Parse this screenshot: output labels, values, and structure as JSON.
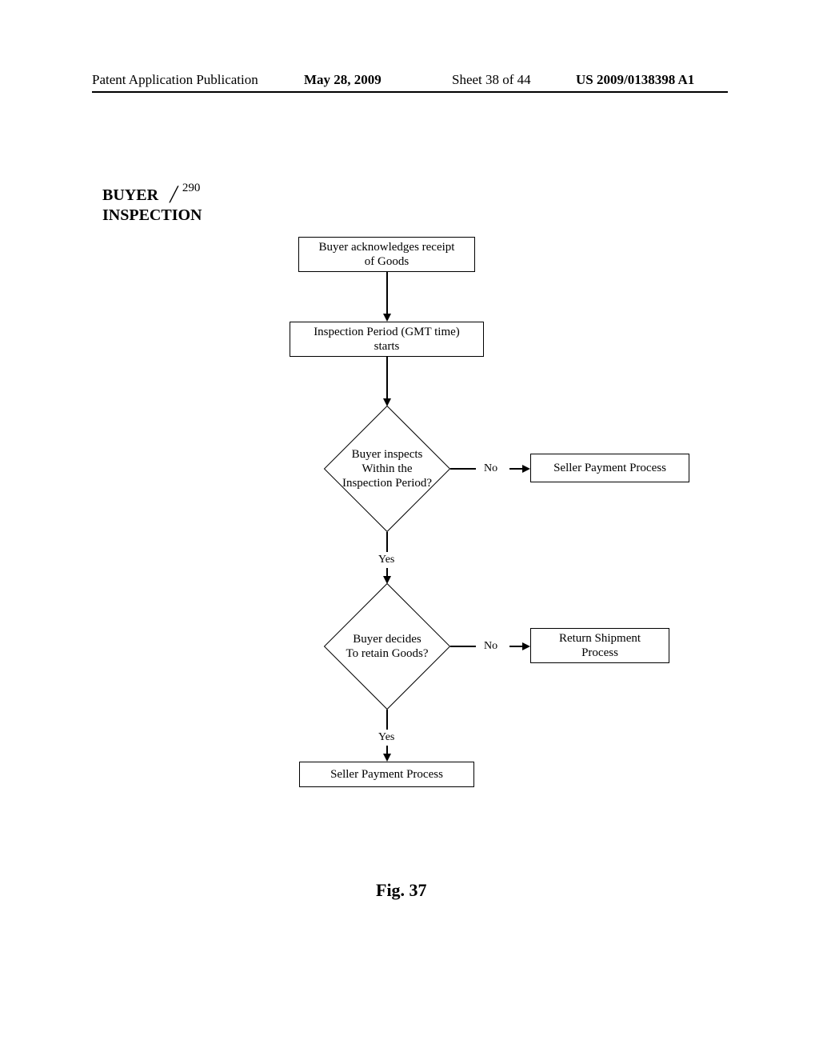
{
  "header": {
    "publication_label": "Patent Application Publication",
    "date": "May 28, 2009",
    "sheet": "Sheet 38 of 44",
    "pub_no": "US 2009/0138398 A1"
  },
  "title": {
    "line1": "BUYER",
    "line2": "INSPECTION",
    "ref_number": "290"
  },
  "flowchart": {
    "type": "flowchart",
    "nodes": {
      "n1": {
        "text": "Buyer acknowledges receipt\nof Goods",
        "shape": "box"
      },
      "n2": {
        "text": "Inspection Period (GMT time)\nstarts",
        "shape": "box"
      },
      "d1": {
        "text": "Buyer inspects\nWithin the\nInspection Period?",
        "shape": "diamond"
      },
      "d2": {
        "text": "Buyer decides\nTo retain Goods?",
        "shape": "diamond"
      },
      "n3": {
        "text": "Seller Payment Process",
        "shape": "box"
      },
      "n4": {
        "text": "Return Shipment\nProcess",
        "shape": "box"
      },
      "n5": {
        "text": "Seller Payment Process",
        "shape": "box"
      }
    },
    "edge_labels": {
      "d1_no": "No",
      "d1_yes": "Yes",
      "d2_no": "No",
      "d2_yes": "Yes"
    }
  },
  "figure_caption": "Fig. 37",
  "style": {
    "border_color": "#000000",
    "background": "#ffffff",
    "font_family": "Times New Roman",
    "node_fontsize": 15,
    "label_fontsize": 14,
    "caption_fontsize": 22,
    "line_width": 1.5
  }
}
